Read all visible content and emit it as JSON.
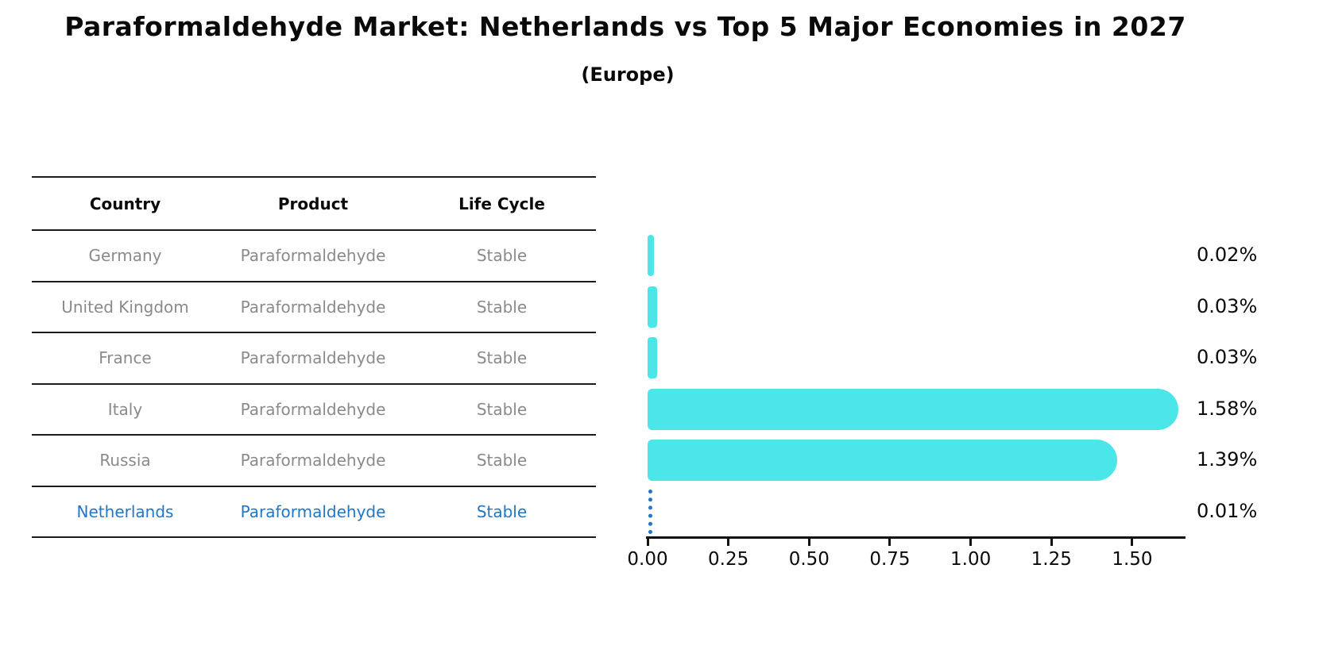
{
  "title": "Paraformaldehyde Market: Netherlands vs Top 5 Major Economies in 2027",
  "subtitle": "(Europe)",
  "table": {
    "headers": [
      "Country",
      "Product",
      "Life Cycle"
    ],
    "rows": [
      {
        "country": "Germany",
        "product": "Paraformaldehyde",
        "life_cycle": "Stable",
        "highlighted": false
      },
      {
        "country": "United Kingdom",
        "product": "Paraformaldehyde",
        "life_cycle": "Stable",
        "highlighted": false
      },
      {
        "country": "France",
        "product": "Paraformaldehyde",
        "life_cycle": "Stable",
        "highlighted": false
      },
      {
        "country": "Italy",
        "product": "Paraformaldehyde",
        "life_cycle": "Stable",
        "highlighted": false
      },
      {
        "country": "Russia",
        "product": "Paraformaldehyde",
        "life_cycle": "Stable",
        "highlighted": false
      },
      {
        "country": "Netherlands",
        "product": "Paraformaldehyde",
        "life_cycle": "Stable",
        "highlighted": true
      }
    ]
  },
  "chart_data": {
    "type": "bar",
    "orientation": "horizontal",
    "categories": [
      "Germany",
      "United Kingdom",
      "France",
      "Italy",
      "Russia",
      "Netherlands"
    ],
    "values": [
      0.02,
      0.03,
      0.03,
      1.58,
      1.39,
      0.01
    ],
    "value_labels": [
      "0.02%",
      "0.03%",
      "0.03%",
      "1.58%",
      "1.39%",
      "0.01%"
    ],
    "x_ticks": [
      0.0,
      0.25,
      0.5,
      0.75,
      1.0,
      1.25,
      1.5
    ],
    "x_tick_labels": [
      "0.00",
      "0.25",
      "0.50",
      "0.75",
      "1.00",
      "1.25",
      "1.50"
    ],
    "xlim": [
      0,
      1.66
    ],
    "grid": false,
    "legend": "none",
    "bar_color": "#4ae6ea",
    "highlight_color": "#2176c7",
    "highlight_index": 5,
    "highlight_style": "dashed-outline-zero-width-bar"
  }
}
